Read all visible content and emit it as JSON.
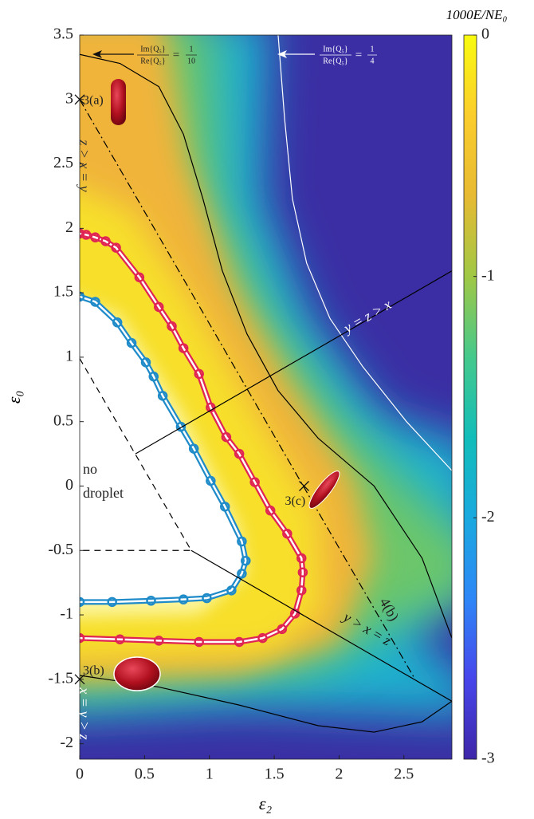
{
  "chart_data": {
    "type": "line",
    "xlabel": "ε₂",
    "ylabel": "ε₀",
    "xlim": [
      0,
      2.87
    ],
    "ylim": [
      -2.12,
      3.5
    ],
    "xticks": [
      0,
      0.5,
      1,
      1.5,
      2,
      2.5
    ],
    "yticks": [
      -2,
      -1.5,
      -1,
      -0.5,
      0,
      0.5,
      1,
      1.5,
      2,
      2.5,
      3,
      3.5
    ],
    "colorbar": {
      "title": "1000E/NE₀",
      "clim": [
        -3,
        0
      ],
      "ticks": [
        0,
        -1,
        -2,
        -3
      ],
      "colormap": [
        "#3e26a8",
        "#4746eb",
        "#2e87f7",
        "#1aa9df",
        "#12bdb9",
        "#45c98c",
        "#a0c845",
        "#e7ba33",
        "#fbcd2c",
        "#f9fb0e"
      ]
    },
    "series": [
      {
        "color": "#1f8bc9",
        "style": "double",
        "marker": true,
        "x": [
          0,
          0.12,
          0.29,
          0.4,
          0.51,
          0.57,
          0.64,
          0.78,
          0.88,
          1.01,
          1.12,
          1.25,
          1.28,
          1.25,
          1.17,
          0.98,
          0.8,
          0.55,
          0.25,
          0
        ],
        "values": [
          1.47,
          1.43,
          1.27,
          1.11,
          0.96,
          0.85,
          0.7,
          0.46,
          0.29,
          0.04,
          -0.16,
          -0.43,
          -0.58,
          -0.68,
          -0.81,
          -0.87,
          -0.88,
          -0.89,
          -0.9,
          -0.9
        ]
      },
      {
        "color": "#e02454",
        "style": "double",
        "marker": true,
        "x": [
          0,
          0.05,
          0.12,
          0.2,
          0.28,
          0.46,
          0.61,
          0.71,
          0.8,
          0.92,
          1.01,
          1.13,
          1.23,
          1.35,
          1.47,
          1.6,
          1.71,
          1.72,
          1.71,
          1.66,
          1.56,
          1.41,
          1.23,
          0.92,
          0.61,
          0.31,
          0
        ],
        "values": [
          1.96,
          1.95,
          1.93,
          1.9,
          1.85,
          1.62,
          1.39,
          1.24,
          1.07,
          0.87,
          0.61,
          0.38,
          0.25,
          0.03,
          -0.19,
          -0.37,
          -0.56,
          -0.67,
          -0.81,
          -0.99,
          -1.11,
          -1.18,
          -1.21,
          -1.21,
          -1.2,
          -1.19,
          -1.18
        ]
      },
      {
        "color": "#000000",
        "style": "solid",
        "marker": false,
        "x": [
          0,
          0.31,
          0.61,
          0.8,
          0.95,
          1.1,
          1.29,
          1.53,
          1.84,
          2.27,
          2.64,
          2.87
        ],
        "values": [
          3.35,
          3.28,
          3.1,
          2.73,
          2.23,
          1.67,
          1.18,
          0.74,
          0.37,
          0,
          -0.56,
          -1.18
        ]
      },
      {
        "color": "#000000",
        "style": "solid",
        "marker": false,
        "x": [
          0,
          0.61,
          1.23,
          1.84,
          2.27,
          2.64,
          2.87
        ],
        "values": [
          -1.47,
          -1.56,
          -1.7,
          -1.86,
          -1.91,
          -1.83,
          -1.67
        ]
      },
      {
        "color": "#ffffff",
        "style": "solid",
        "marker": false,
        "x": [
          1.53,
          1.58,
          1.64,
          1.75,
          1.93,
          2.18,
          2.52,
          2.87
        ],
        "values": [
          3.5,
          2.85,
          2.23,
          1.73,
          1.3,
          0.93,
          0.5,
          0.12
        ]
      },
      {
        "color": "#000000",
        "style": "dashdot",
        "marker": false,
        "x": [
          0,
          2.58
        ],
        "values": [
          3.0,
          -1.49
        ]
      },
      {
        "color": "#000000",
        "style": "dashed",
        "marker": false,
        "x": [
          0,
          0.86,
          0
        ],
        "values": [
          0.99,
          -0.5,
          -0.5
        ]
      },
      {
        "color": "#000000",
        "style": "solid",
        "marker": false,
        "x": [
          0.43,
          2.87
        ],
        "values": [
          0.25,
          1.67
        ]
      },
      {
        "color": "#000000",
        "style": "solid",
        "marker": false,
        "x": [
          0.86,
          2.87
        ],
        "values": [
          -0.5,
          -1.67
        ]
      }
    ],
    "markers": [
      {
        "label": "3(a)",
        "x": 0,
        "y": 3
      },
      {
        "label": "3(b)",
        "x": 0,
        "y": -1.5
      },
      {
        "label": "3(c)",
        "x": 1.73,
        "y": 0
      }
    ],
    "annotations": [
      "no",
      "droplet",
      "z > x = y",
      "x = y > z",
      "y = z > x",
      "y > x = z",
      "4(b)"
    ],
    "ratio_labels": [
      {
        "numerator": "Im{Q₅}",
        "denominator": "Re{Q₅}",
        "relation": "=",
        "rhs_numerator": "1",
        "rhs_denominator": "10"
      },
      {
        "numerator": "Im{Q₅}",
        "denominator": "Re{Q₅}",
        "relation": "=",
        "rhs_numerator": "1",
        "rhs_denominator": "4"
      }
    ]
  }
}
